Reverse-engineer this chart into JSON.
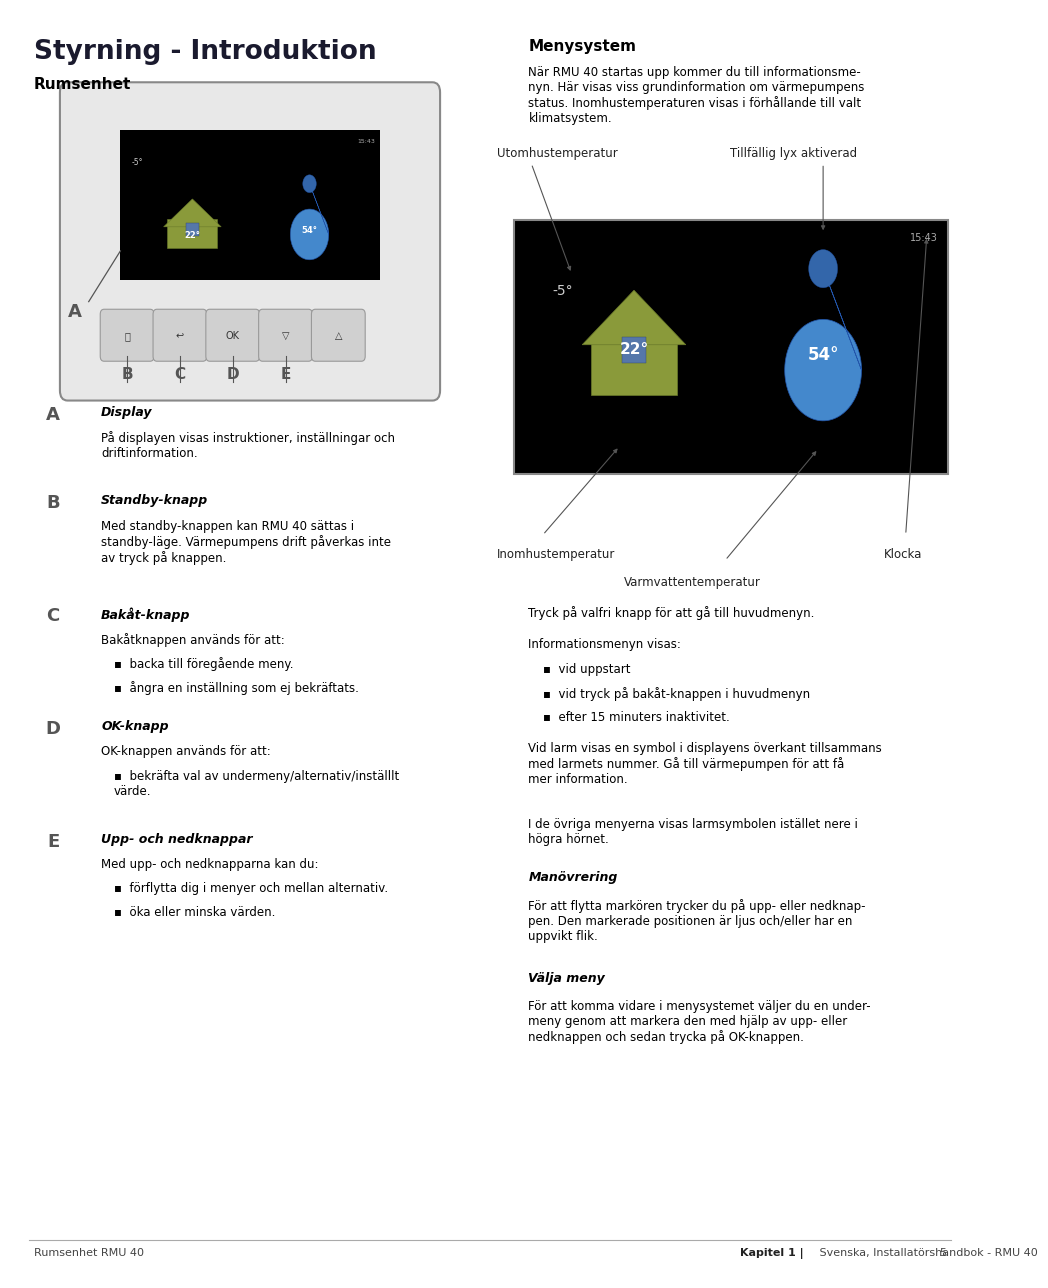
{
  "title": "Styrning - Introduktion",
  "bg_color": "#ffffff",
  "sections": {
    "rumsenhet_title": "Rumsenhet",
    "menysystem_title": "Menysystem",
    "menysystem_para1": "När RMU 40 startas upp kommer du till informationsme-\nnyn. Här visas viss grundinformation om värmepumpens\nstatus. Inomhustemperaturen visas i förhållande till valt\nklimatsystem.",
    "tryck_text": "Tryck på valfri knapp för att gå till huvudmenyn.",
    "info_title": "Informationsmenyn visas:",
    "info_bullets": [
      "vid uppstart",
      "vid tryck på bakåt-knappen i huvudmenyn",
      "efter 15 minuters inaktivitet."
    ],
    "larm_para": "Vid larm visas en symbol i displayens överkant tillsammans\nmed larmets nummer. Gå till värmepumpen för att få\nmer information.",
    "ovriga_para": "I de övriga menyerna visas larmsymbolen istället nere i\nhögra hörnet.",
    "manovr_title": "Manövrering",
    "manovr_para": "För att flytta markören trycker du på upp- eller nedknap-\npen. Den markerade positionen är ljus och/eller har en\nuppvikt flik.",
    "valja_title": "Välja meny",
    "valja_para": "För att komma vidare i menysystemet väljer du en under-\nmeny genom att markera den med hjälp av upp- eller\nnedknappen och sedan trycka på OK-knappen."
  },
  "labels_left": [
    {
      "letter": "A",
      "bold_title": "Display",
      "text": "På displayen visas instruktioner, inställningar och\ndriftinformation.",
      "bullets": []
    },
    {
      "letter": "B",
      "bold_title": "Standby-knapp",
      "text": "Med standby-knappen kan RMU 40 sättas i\nstandby-läge. Värmepumpens drift påverkas inte\nav tryck på knappen.",
      "bullets": []
    },
    {
      "letter": "C",
      "bold_title": "Bakåt-knapp",
      "text": "Bakåtknappen används för att:",
      "bullets": [
        "backa till föregående meny.",
        "ångra en inställning som ej bekräftats."
      ]
    },
    {
      "letter": "D",
      "bold_title": "OK-knapp",
      "text": "OK-knappen används för att:",
      "bullets": [
        "bekräfta val av undermeny/alternativ/inställlt\nvärde."
      ]
    },
    {
      "letter": "E",
      "bold_title": "Upp- och nedknappar",
      "text": "Med upp- och nedknapparna kan du:",
      "bullets": [
        "förflytta dig i menyer och mellan alternativ.",
        "öka eller minska värden."
      ]
    }
  ],
  "footer_left": "Rumsenhet RMU 40",
  "footer_right": "Kapitel 1 | Svenska, Installatörshandbok - RMU 40",
  "footer_page": "5",
  "house_color": "#8a9a3a",
  "house_edge": "#6a7a2a",
  "win_color": "#5577aa",
  "drop_color": "#4488cc",
  "drop_edge": "#2255aa",
  "screen_color": "#000000",
  "time_color": "#aaaaaa",
  "temp_neg_color": "#cccccc",
  "arrow_color": "#555555",
  "label_color": "#555555",
  "btn_face": "#d0d0d0",
  "btn_edge": "#999999",
  "device_face": "#e8e8e8",
  "device_edge": "#888888"
}
